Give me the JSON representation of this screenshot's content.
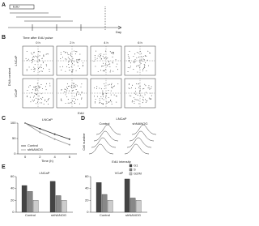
{
  "panels": {
    "a": "A",
    "b": "B",
    "c": "C",
    "d": "D",
    "e": "E"
  },
  "panel_a": {
    "pulse": "EdU",
    "axis_label": "Day"
  },
  "panel_b": {
    "title": "Time after EdU pulse",
    "rows": [
      "LNCaP",
      "VCaP"
    ],
    "columns": [
      "0 h",
      "2 h",
      "4 h",
      "6 h"
    ],
    "x_label": "EdU",
    "y_label": "DNA content"
  },
  "panel_d": {
    "title": "LNCaP",
    "groups": [
      "Control",
      "shNANOG"
    ],
    "x_label": "EdU intensity",
    "y_label": "Cell number"
  },
  "chart_data": [
    {
      "type": "line",
      "title": "LNCaP",
      "x_label": "Time (h)",
      "categories": [
        "0",
        "2",
        "4",
        "6"
      ],
      "series": [
        {
          "name": "Control",
          "color": "#333333",
          "values": [
            100,
            82,
            64,
            48
          ]
        },
        {
          "name": "shNANOG",
          "color": "#999999",
          "values": [
            100,
            70,
            48,
            30
          ]
        }
      ],
      "ylim": [
        0,
        100
      ],
      "yticks": [
        0,
        50,
        100
      ]
    },
    {
      "type": "bar",
      "title": "LNCaP",
      "categories": [
        "Control",
        "shNANOG"
      ],
      "series": [
        {
          "name": "G1",
          "color": "#444444",
          "values": [
            45,
            52
          ]
        },
        {
          "name": "S",
          "color": "#888888",
          "values": [
            35,
            28
          ]
        },
        {
          "name": "G2/M",
          "color": "#cccccc",
          "values": [
            20,
            20
          ]
        }
      ],
      "ylim": [
        0,
        60
      ],
      "yticks": [
        0,
        20,
        40,
        60
      ]
    },
    {
      "type": "bar",
      "title": "VCaP",
      "categories": [
        "Control",
        "shNANOG"
      ],
      "series": [
        {
          "name": "G1",
          "color": "#444444",
          "values": [
            50,
            56
          ]
        },
        {
          "name": "S",
          "color": "#888888",
          "values": [
            30,
            24
          ]
        },
        {
          "name": "G2/M",
          "color": "#cccccc",
          "values": [
            20,
            20
          ]
        }
      ],
      "ylim": [
        0,
        60
      ],
      "yticks": [
        0,
        20,
        40,
        60
      ]
    }
  ]
}
